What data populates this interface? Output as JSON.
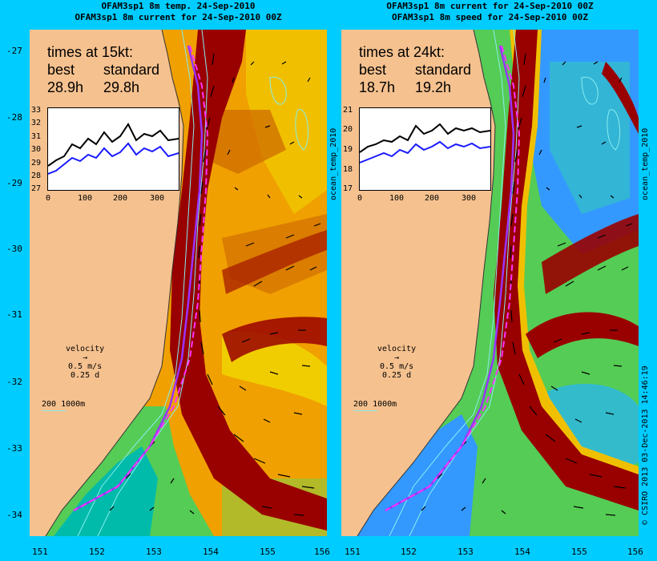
{
  "left_panel": {
    "title_line1": "OFAM3sp1 8m temp. 24-Sep-2010",
    "title_line2": "OFAM3sp1 8m current for 24-Sep-2010 00Z",
    "times_title": "times at 15kt:",
    "col_best": "best",
    "col_standard": "standard",
    "best_value": "28.9h",
    "standard_value": "29.8h",
    "inset_yticks": [
      "33",
      "32",
      "31",
      "30",
      "29",
      "28",
      "27"
    ],
    "inset_xticks": [
      "0",
      "100",
      "200",
      "300"
    ],
    "side_label": "ocean_temp_2010"
  },
  "right_panel": {
    "title_line1": "OFAM3sp1 8m current for 24-Sep-2010 00Z",
    "title_line2": "OFAM3sp1 8m speed for 24-Sep-2010 00Z",
    "times_title": "times at 24kt:",
    "col_best": "best",
    "col_standard": "standard",
    "best_value": "18.7h",
    "standard_value": "19.2h",
    "inset_yticks": [
      "21",
      "20",
      "19",
      "18",
      "17"
    ],
    "inset_xticks": [
      "0",
      "100",
      "200",
      "300"
    ],
    "side_label": "ocean_temp_2010"
  },
  "velocity_legend": {
    "label": "velocity",
    "speed": "0.5 m/s",
    "duration": "0.25 d"
  },
  "depth_legend": {
    "text": "200  1000m"
  },
  "lat_ticks": [
    "-27",
    "-28",
    "-29",
    "-30",
    "-31",
    "-32",
    "-33",
    "-34"
  ],
  "lon_ticks_left": [
    "151",
    "152",
    "153",
    "154",
    "155",
    "156"
  ],
  "lon_ticks_right": [
    "151",
    "152",
    "153",
    "154",
    "155",
    "156"
  ],
  "credit": "© CSIRO 2013   03-Dec-2013 14:46:19",
  "colors": {
    "background": "#00ccff",
    "land": "#f5c18f",
    "route_best": "#ff33ff",
    "route_standard": "#9933ff",
    "current_core": "#990000",
    "warm": "#cc6600",
    "mid": "#f0c000",
    "cool": "#55cc55",
    "cold": "#3399ff"
  }
}
